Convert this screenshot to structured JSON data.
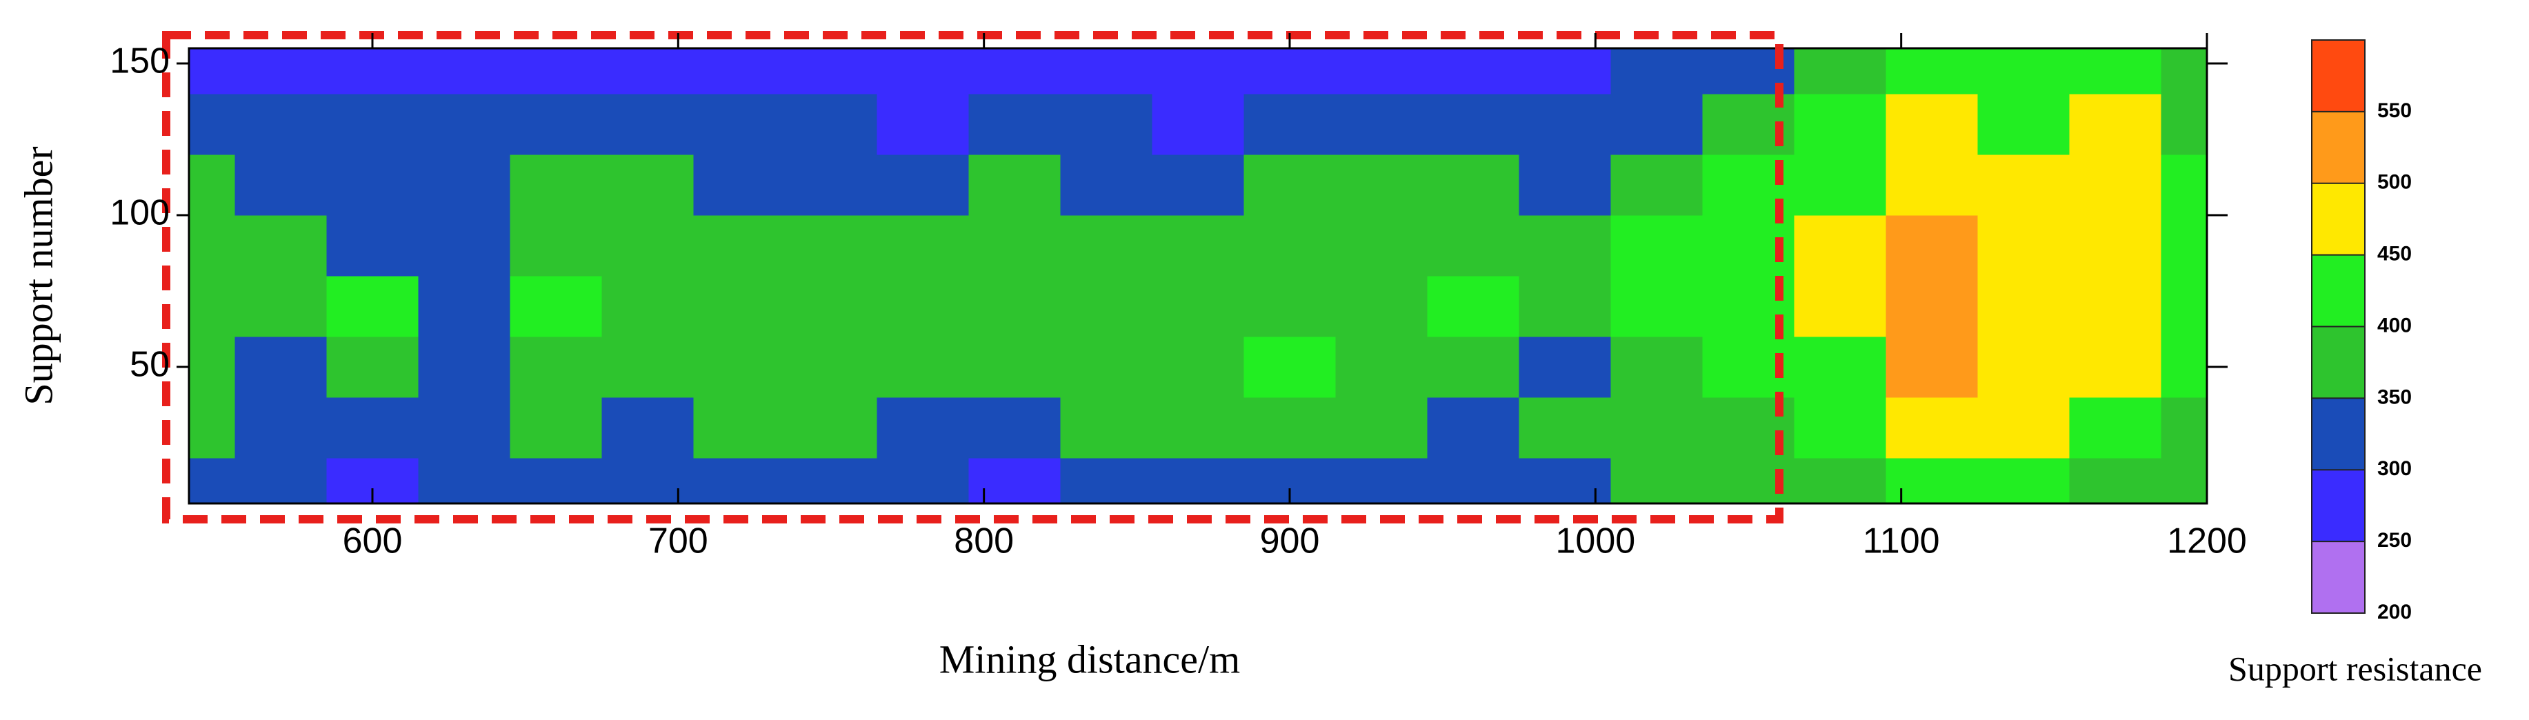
{
  "chart_data": {
    "type": "contour",
    "xlabel": "Mining distance/m",
    "ylabel": "Support number",
    "colorbar_label": "Support resistance",
    "xlim": [
      540,
      1200
    ],
    "xticks": [
      600,
      700,
      800,
      900,
      1000,
      1100,
      1200
    ],
    "ylim": [
      5,
      155
    ],
    "yticks": [
      50,
      100,
      150
    ],
    "x": [
      540,
      570,
      600,
      630,
      660,
      690,
      720,
      750,
      780,
      810,
      840,
      870,
      900,
      930,
      960,
      990,
      1020,
      1050,
      1080,
      1110,
      1140,
      1170,
      1200
    ],
    "y": [
      10,
      30,
      50,
      70,
      90,
      110,
      130,
      150
    ],
    "z": [
      [
        320,
        330,
        280,
        310,
        330,
        320,
        310,
        330,
        320,
        290,
        330,
        320,
        330,
        340,
        330,
        340,
        350,
        360,
        380,
        420,
        410,
        380,
        360
      ],
      [
        350,
        330,
        320,
        340,
        360,
        330,
        370,
        360,
        320,
        340,
        360,
        380,
        390,
        370,
        340,
        360,
        380,
        390,
        420,
        480,
        470,
        430,
        390
      ],
      [
        370,
        340,
        360,
        330,
        380,
        390,
        360,
        380,
        350,
        380,
        370,
        360,
        410,
        380,
        370,
        340,
        390,
        410,
        440,
        510,
        480,
        470,
        420
      ],
      [
        380,
        370,
        410,
        340,
        440,
        380,
        370,
        360,
        390,
        380,
        390,
        370,
        390,
        380,
        400,
        370,
        410,
        420,
        450,
        530,
        490,
        460,
        430
      ],
      [
        370,
        360,
        340,
        330,
        390,
        380,
        380,
        370,
        350,
        390,
        380,
        360,
        380,
        370,
        380,
        360,
        400,
        410,
        470,
        500,
        470,
        480,
        420
      ],
      [
        360,
        330,
        340,
        320,
        380,
        360,
        340,
        330,
        340,
        370,
        340,
        330,
        360,
        350,
        370,
        340,
        380,
        400,
        430,
        480,
        460,
        470,
        410
      ],
      [
        310,
        320,
        300,
        330,
        310,
        320,
        310,
        300,
        290,
        320,
        310,
        290,
        310,
        330,
        300,
        320,
        340,
        360,
        410,
        450,
        420,
        460,
        390
      ],
      [
        270,
        280,
        270,
        260,
        280,
        270,
        260,
        270,
        260,
        270,
        280,
        270,
        270,
        260,
        280,
        290,
        310,
        330,
        380,
        420,
        400,
        410,
        370
      ]
    ],
    "levels": [
      200,
      250,
      300,
      350,
      400,
      450,
      500,
      550,
      600
    ],
    "colors": [
      "#b070f0",
      "#3a2cff",
      "#1a4cb8",
      "#2ec42e",
      "#22ee22",
      "#ffe800",
      "#ff9a1a",
      "#ff4a10"
    ],
    "colorbar_ticks": [
      200,
      250,
      300,
      350,
      400,
      450,
      500,
      550
    ]
  }
}
